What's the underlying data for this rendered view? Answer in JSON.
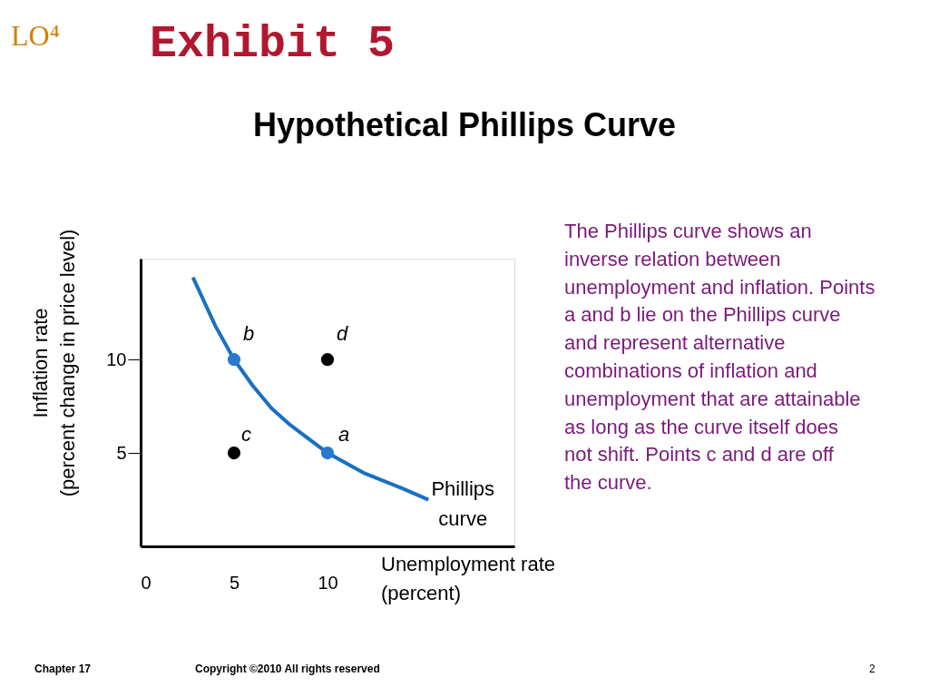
{
  "chart_data": {
    "type": "line",
    "title": "Hypothetical Phillips Curve",
    "xlabel": "Unemployment rate\n (percent)",
    "ylabel": "Inflation rate\n(percent change in price level)",
    "xlim": [
      0,
      20
    ],
    "ylim": [
      0,
      15.4
    ],
    "xticks": [
      0,
      5,
      10
    ],
    "yticks": [
      5,
      10
    ],
    "grid": false,
    "legend": false,
    "series": [
      {
        "color": "#1a6fc0",
        "marker": "none",
        "line_style": "solid",
        "x": [
          2.8,
          4,
          5,
          6,
          7,
          8,
          10,
          12,
          14,
          15.4
        ],
        "values": [
          14.4,
          11.8,
          10,
          8.6,
          7.4,
          6.5,
          5,
          3.9,
          3.1,
          2.5
        ]
      },
      {
        "type": "scatter",
        "color": "#2a78d0",
        "marker": "circle",
        "x": [
          5,
          10
        ],
        "values": [
          10,
          5
        ]
      },
      {
        "type": "scatter",
        "color": "#000000",
        "marker": "circle",
        "x": [
          5,
          10
        ],
        "values": [
          5,
          10
        ]
      }
    ],
    "annotations": [
      {
        "text": "b",
        "x": 5,
        "y": 10
      },
      {
        "text": "a",
        "x": 10,
        "y": 5
      },
      {
        "text": "c",
        "x": 5,
        "y": 5
      },
      {
        "text": "d",
        "x": 10,
        "y": 10
      },
      {
        "text": "Phillips curve",
        "x": 15.4,
        "y": 2.5
      },
      "LO⁴",
      "Exhibit 5",
      "The Phillips curve shows an inverse relation between unemployment and inflation. Points a and b lie on the Phillips curve and represent alternative combinations of inflation and unemployment that are attainable as long as the curve itself does not shift. Points c and d are off the curve.",
      "Chapter 17",
      "Copyright ©2010 All rights reserved",
      "2"
    ]
  }
}
